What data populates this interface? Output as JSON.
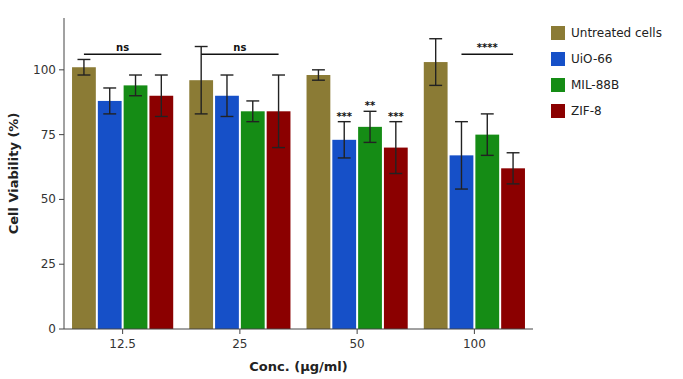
{
  "chart_data": {
    "type": "bar",
    "categories": [
      "12.5",
      "25",
      "50",
      "100"
    ],
    "series": [
      {
        "name": "Untreated cells",
        "color": "#8B7B35",
        "values": [
          101,
          96,
          98,
          103
        ],
        "errors": [
          3,
          13,
          2,
          9
        ]
      },
      {
        "name": "UiO-66",
        "color": "#1650C8",
        "values": [
          88,
          90,
          73,
          67
        ],
        "errors": [
          5,
          8,
          7,
          13
        ]
      },
      {
        "name": "MIL-88B",
        "color": "#158C15",
        "values": [
          94,
          84,
          78,
          75
        ],
        "errors": [
          4,
          4,
          6,
          8
        ]
      },
      {
        "name": "ZIF-8",
        "color": "#8B0000",
        "values": [
          90,
          84,
          70,
          62
        ],
        "errors": [
          8,
          14,
          10,
          6
        ]
      }
    ],
    "xlabel": "Conc. (μg/ml)",
    "ylabel": "Cell Viability (%)",
    "ylim": [
      0,
      120
    ],
    "yticks": [
      0,
      25,
      50,
      75,
      100
    ],
    "grid": false,
    "legend": "right",
    "annotations": [
      {
        "text": "ns",
        "category": 0,
        "series": [
          0,
          3
        ],
        "y": 106
      },
      {
        "text": "ns",
        "category": 1,
        "series": [
          0,
          3
        ],
        "y": 106
      },
      {
        "text": "***",
        "category": 2,
        "series": 1,
        "y": 80.5
      },
      {
        "text": "**",
        "category": 2,
        "series": 2,
        "y": 85
      },
      {
        "text": "***",
        "category": 2,
        "series": 3,
        "y": 80.5
      },
      {
        "text": "****",
        "category": 3,
        "series": [
          1,
          3
        ],
        "y": 106
      }
    ]
  }
}
